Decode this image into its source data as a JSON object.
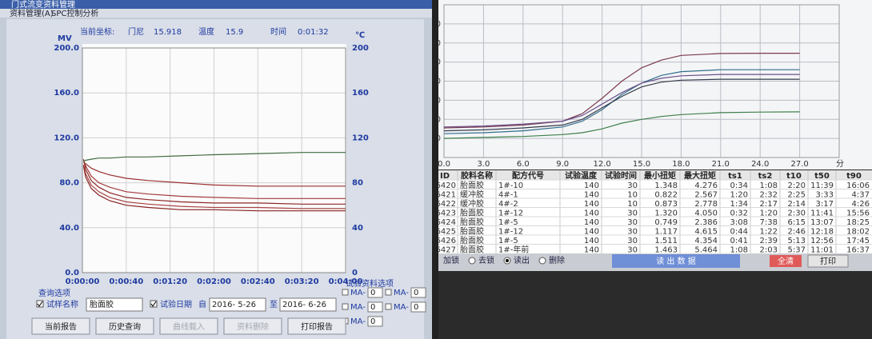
{
  "left": {
    "window_title": "门式流变资料管理",
    "menu": [
      "资料管理(A)",
      "SPC控制分析"
    ],
    "status": {
      "coord_label": "当前坐标:",
      "mode": "门尼",
      "mooney": "15.918",
      "temp_label": "温度",
      "temp": "15.9",
      "time_label": "时间",
      "time": "0:01:32"
    },
    "chart": {
      "type": "line",
      "y_label": "MV",
      "y2_label": "℃",
      "xlim": [
        0,
        240
      ],
      "xticks": [
        {
          "value": 0,
          "label": "0:00:00"
        },
        {
          "value": 40,
          "label": "0:00:40"
        },
        {
          "value": 80,
          "label": "0:01:20"
        },
        {
          "value": 120,
          "label": "0:02:00"
        },
        {
          "value": 160,
          "label": "0:02:40"
        },
        {
          "value": 200,
          "label": "0:03:20"
        },
        {
          "value": 240,
          "label": "0:04:00"
        }
      ],
      "ylim": [
        0,
        200
      ],
      "yticks": [
        {
          "value": 0,
          "label": "0.0"
        },
        {
          "value": 40,
          "label": "40.0"
        },
        {
          "value": 80,
          "label": "80.0"
        },
        {
          "value": 120,
          "label": "120.0"
        },
        {
          "value": 160,
          "label": "160.0"
        },
        {
          "value": 200,
          "label": "200.0"
        }
      ],
      "y2lim": [
        0,
        200
      ],
      "y2ticks": [
        0,
        40,
        80,
        120,
        160,
        200
      ],
      "grid": true,
      "x": [
        1,
        3,
        8,
        15,
        25,
        40,
        60,
        90,
        120,
        160,
        200,
        240
      ],
      "series": [
        {
          "color": "#9b2f2f",
          "values": [
            98,
            97,
            93,
            90,
            87,
            84,
            82,
            80,
            78,
            77,
            77,
            77
          ]
        },
        {
          "color": "#a33a3a",
          "values": [
            100,
            95,
            86,
            80,
            76,
            72,
            70,
            68,
            67,
            66,
            66,
            66
          ]
        },
        {
          "color": "#8e2626",
          "values": [
            101,
            92,
            82,
            76,
            71,
            67,
            65,
            63,
            62,
            62,
            61,
            61
          ]
        },
        {
          "color": "#a84444",
          "values": [
            96,
            88,
            78,
            72,
            67,
            63,
            61,
            59,
            58,
            58,
            57,
            57
          ]
        },
        {
          "color": "#872222",
          "values": [
            95,
            85,
            75,
            69,
            64,
            60,
            58,
            56,
            56,
            55,
            55,
            55
          ]
        },
        {
          "color": "#3f6b3f",
          "values": [
            99,
            100,
            101,
            102,
            102,
            103,
            103,
            104,
            105,
            106,
            107,
            107
          ]
        }
      ]
    },
    "query": {
      "title": "查询选项",
      "sample_name_label": "试样名称",
      "sample_name": "胎面胶",
      "date_label": "试验日期",
      "from": "自",
      "date_from": "2016- 5-26",
      "to": "至",
      "date_to": "2016- 6-26"
    },
    "options": {
      "title": "试验资料选项",
      "items": [
        {
          "label": "MA-",
          "value": "0"
        },
        {
          "label": "MA-",
          "value": "0"
        },
        {
          "label": "MA-",
          "value": "0"
        },
        {
          "label": "MA-",
          "value": "0"
        },
        {
          "label": "MA-",
          "value": "0"
        }
      ]
    },
    "buttons": [
      "当前报告",
      "历史查询",
      "曲线载入",
      "资料删除",
      "打印报告"
    ]
  },
  "right": {
    "chart": {
      "type": "line",
      "x_label": "分",
      "xlim": [
        0,
        30
      ],
      "xticks": [
        {
          "value": 0,
          "label": "0.0"
        },
        {
          "value": 3,
          "label": "3.0"
        },
        {
          "value": 6,
          "label": "6.0"
        },
        {
          "value": 9,
          "label": "9.0"
        },
        {
          "value": 12,
          "label": "12.0"
        },
        {
          "value": 15,
          "label": "15.0"
        },
        {
          "value": 18,
          "label": "18.0"
        },
        {
          "value": 21,
          "label": "21.0"
        },
        {
          "value": 24,
          "label": "24.0"
        },
        {
          "value": 27,
          "label": "27.0"
        }
      ],
      "ylim": [
        0,
        8
      ],
      "yticks": [
        {
          "value": 1,
          "label": "1.00"
        },
        {
          "value": 2,
          "label": "2.00"
        },
        {
          "value": 3,
          "label": "3.00"
        },
        {
          "value": 4,
          "label": "4.00"
        },
        {
          "value": 5,
          "label": "5.00"
        },
        {
          "value": 6,
          "label": "6.00"
        },
        {
          "value": 7,
          "label": "7.00"
        }
      ],
      "grid": true,
      "x": [
        0,
        3,
        6,
        9,
        10.5,
        12,
        13.5,
        15,
        16.5,
        18,
        21,
        24,
        27
      ],
      "series": [
        {
          "color": "#7a3b4e",
          "values": [
            1.55,
            1.6,
            1.7,
            1.9,
            2.3,
            3.1,
            4.0,
            4.7,
            5.1,
            5.35,
            5.45,
            5.46,
            5.46
          ]
        },
        {
          "color": "#2f6d8c",
          "values": [
            1.25,
            1.3,
            1.4,
            1.6,
            1.9,
            2.5,
            3.3,
            3.9,
            4.3,
            4.5,
            4.6,
            4.6,
            4.6
          ]
        },
        {
          "color": "#6a4f8a",
          "values": [
            1.6,
            1.65,
            1.75,
            1.9,
            2.2,
            2.8,
            3.4,
            3.9,
            4.15,
            4.28,
            4.35,
            4.35,
            4.35
          ]
        },
        {
          "color": "#333a4a",
          "values": [
            1.4,
            1.45,
            1.55,
            1.7,
            2.0,
            2.6,
            3.2,
            3.7,
            3.95,
            4.05,
            4.1,
            4.1,
            4.1
          ]
        },
        {
          "color": "#3d7f4a",
          "values": [
            1.0,
            1.05,
            1.1,
            1.2,
            1.3,
            1.5,
            1.8,
            2.0,
            2.15,
            2.25,
            2.35,
            2.38,
            2.39
          ]
        }
      ]
    },
    "table": {
      "columns": [
        "ID",
        "胶料名称",
        "配方代号",
        "试验温度",
        "试验时间",
        "最小扭矩",
        "最大扭矩",
        "ts1",
        "ts2",
        "t10",
        "t50",
        "t90"
      ],
      "rows": [
        [
          "16420",
          "胎面胶",
          "1#-10",
          "140",
          "30",
          "1.348",
          "4.276",
          "0:34",
          "1:08",
          "2:20",
          "11:39",
          "16:06"
        ],
        [
          "16421",
          "缓冲胶",
          "4#-1",
          "140",
          "10",
          "0.822",
          "2.567",
          "1:20",
          "2:32",
          "2:25",
          "3:33",
          "4:37"
        ],
        [
          "16422",
          "缓冲胶",
          "4#-2",
          "140",
          "10",
          "0.873",
          "2.778",
          "1:34",
          "2:17",
          "2:14",
          "3:17",
          "4:26"
        ],
        [
          "16423",
          "胎面胶",
          "1#-12",
          "140",
          "30",
          "1.320",
          "4.050",
          "0:32",
          "1:20",
          "2:30",
          "11:41",
          "15:56"
        ],
        [
          "16424",
          "胎面胶",
          "1#-5",
          "140",
          "30",
          "0.749",
          "2.386",
          "3:08",
          "7:38",
          "6:15",
          "13:07",
          "18:25"
        ],
        [
          "16425",
          "胎面胶",
          "1#-12",
          "140",
          "30",
          "1.117",
          "4.615",
          "0:44",
          "1:22",
          "2:46",
          "12:18",
          "18:02"
        ],
        [
          "16426",
          "胎面胶",
          "1#-5",
          "140",
          "30",
          "1.511",
          "4.354",
          "0:41",
          "2:39",
          "5:13",
          "12:56",
          "17:45"
        ],
        [
          "16427",
          "胎面胶",
          "1#-年前",
          "140",
          "30",
          "1.463",
          "5.464",
          "1:08",
          "2:03",
          "5:37",
          "11:01",
          "16:37"
        ]
      ]
    },
    "controls": {
      "lock": "加锁",
      "unlock": "去锁",
      "read": "读出",
      "delete": "删除",
      "read_data": "读 出 数 据",
      "clear": "全清",
      "print": "打印"
    }
  }
}
